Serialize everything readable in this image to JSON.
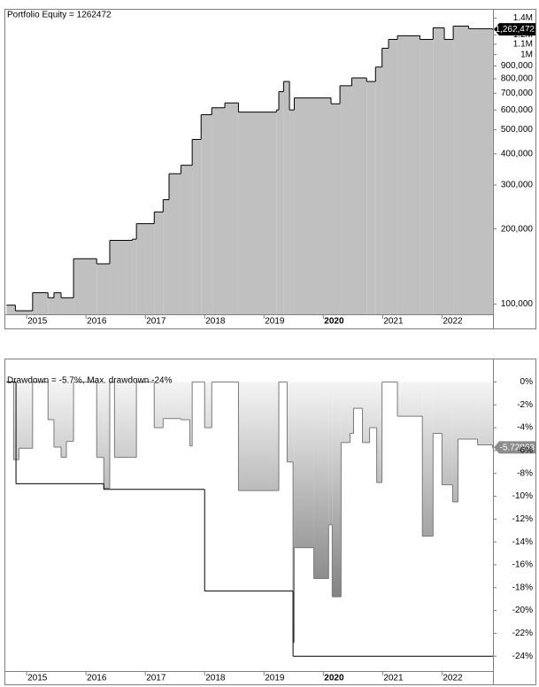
{
  "chart_data": [
    {
      "type": "area",
      "title": "Portfolio Equity = 1262472",
      "log_scale": true,
      "grid": false,
      "bold_xtick": 2020,
      "xlim": [
        2014.64,
        2022.86
      ],
      "xticks": [
        2015,
        2016,
        2017,
        2018,
        2019,
        2020,
        2021,
        2022
      ],
      "ylim": [
        91000,
        1500000
      ],
      "yticks": [
        {
          "value": 100000,
          "label": "100,000"
        },
        {
          "value": 200000,
          "label": "200,000"
        },
        {
          "value": 300000,
          "label": "300,000"
        },
        {
          "value": 400000,
          "label": "400,000"
        },
        {
          "value": 500000,
          "label": "500,000"
        },
        {
          "value": 600000,
          "label": "600,000"
        },
        {
          "value": 700000,
          "label": "700,000"
        },
        {
          "value": 800000,
          "label": "800,000"
        },
        {
          "value": 900000,
          "label": "900,000"
        },
        {
          "value": 1000000,
          "label": "1M"
        },
        {
          "value": 1100000,
          "label": "1.1M"
        },
        {
          "value": 1200000,
          "label": "1.2M"
        },
        {
          "value": 1400000,
          "label": "1.4M"
        }
      ],
      "series": [
        {
          "color": "#000000",
          "fill": [
            "#c0c0c0",
            "#c0c0c0"
          ],
          "last_label_color": "#000000",
          "last_value_label": "1,262,472",
          "x": [
            2014.66,
            2014.81,
            2015.1,
            2015.36,
            2015.46,
            2015.58,
            2015.79,
            2016.18,
            2016.4,
            2016.78,
            2016.85,
            2017.15,
            2017.3,
            2017.4,
            2017.6,
            2017.79,
            2017.94,
            2018.12,
            2018.34,
            2018.57,
            2019.21,
            2019.25,
            2019.33,
            2019.43,
            2019.51,
            2020.13,
            2020.28,
            2020.48,
            2020.73,
            2020.88,
            2020.99,
            2021.1,
            2021.25,
            2021.63,
            2021.85,
            2022.04,
            2022.19,
            2022.45,
            2022.85
          ],
          "values": [
            99000,
            94000,
            111000,
            106000,
            111000,
            106000,
            152000,
            145000,
            180000,
            182000,
            210000,
            234000,
            262000,
            333000,
            360000,
            457000,
            574000,
            612000,
            640000,
            588000,
            600000,
            710000,
            780000,
            600000,
            670000,
            635000,
            750000,
            806000,
            780000,
            891000,
            1060000,
            1150000,
            1190000,
            1150000,
            1280000,
            1150000,
            1300000,
            1270000,
            1262472
          ]
        }
      ]
    },
    {
      "type": "area",
      "title": "Drawdown = -5.7%, Max. drawdown -24%",
      "log_scale": false,
      "grid": false,
      "bold_xtick": 2020,
      "xlim": [
        2014.64,
        2022.86
      ],
      "xticks": [
        2015,
        2016,
        2017,
        2018,
        2019,
        2020,
        2021,
        2022
      ],
      "ylim": [
        -25.3,
        0.5
      ],
      "yticks": [
        {
          "value": 0,
          "label": "0%"
        },
        {
          "value": -2,
          "label": "-2%"
        },
        {
          "value": -4,
          "label": "-4%"
        },
        {
          "value": -6,
          "label": "-6%"
        },
        {
          "value": -8,
          "label": "-8%"
        },
        {
          "value": -10,
          "label": "-10%"
        },
        {
          "value": -12,
          "label": "-12%"
        },
        {
          "value": -14,
          "label": "-14%"
        },
        {
          "value": -16,
          "label": "-16%"
        },
        {
          "value": -18,
          "label": "-18%"
        },
        {
          "value": -20,
          "label": "-20%"
        },
        {
          "value": -22,
          "label": "-22%"
        },
        {
          "value": -24,
          "label": "-24%"
        }
      ],
      "series": [
        {
          "color": "#7a7a7a",
          "fill": [
            "#f4f4f4",
            "#5c5c5c"
          ],
          "last_label_color": "#8c8c8c",
          "x": [
            2014.66,
            2014.78,
            2014.87,
            2015.1,
            2015.36,
            2015.46,
            2015.58,
            2015.67,
            2015.79,
            2016.18,
            2016.3,
            2016.4,
            2016.48,
            2016.78,
            2016.85,
            2017.15,
            2017.3,
            2017.6,
            2017.75,
            2017.79,
            2017.94,
            2018.0,
            2018.12,
            2018.57,
            2019.13,
            2019.25,
            2019.39,
            2019.49,
            2019.51,
            2019.84,
            2020.09,
            2020.15,
            2020.3,
            2020.45,
            2020.51,
            2020.66,
            2020.78,
            2020.9,
            2020.99,
            2021.25,
            2021.6,
            2021.67,
            2021.85,
            2022.0,
            2022.18,
            2022.27,
            2022.6,
            2022.85
          ],
          "values": [
            0,
            -6.8,
            -5.8,
            0,
            -3.3,
            -5.7,
            -6.6,
            -5.2,
            0,
            -6.6,
            -9.3,
            0,
            -6.6,
            -6.6,
            0,
            -4.0,
            -3.2,
            -3.3,
            -5.6,
            0,
            0,
            -4,
            0,
            -9.5,
            -9.5,
            0,
            -7.0,
            -22.8,
            -14.5,
            -17.2,
            -12.5,
            -18.8,
            -5.3,
            -4.5,
            -2.3,
            -5.3,
            -4.0,
            -8.8,
            0,
            -3.0,
            -3.0,
            -13.5,
            -4.5,
            -9.0,
            -10.5,
            -5.0,
            -5.5,
            -5.72863
          ]
        },
        {
          "color": "#000000",
          "x": [
            2014.66,
            2014.82,
            2016.3,
            2018.0,
            2019.49,
            2022.85
          ],
          "values": [
            0,
            -8.9,
            -9.4,
            -18.3,
            -24.0,
            -24.0
          ]
        }
      ]
    }
  ]
}
